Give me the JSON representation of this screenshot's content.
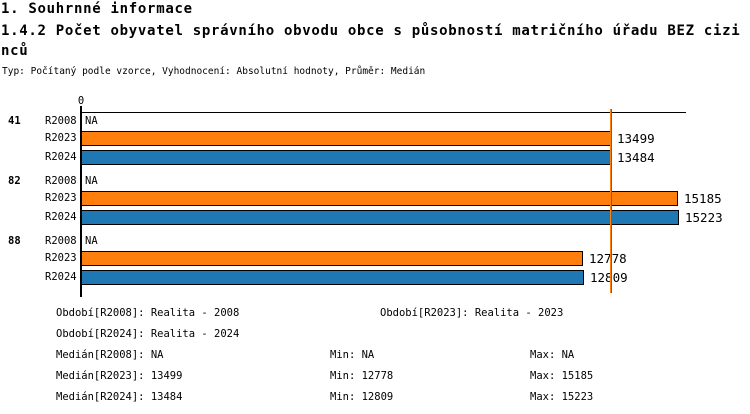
{
  "header": {
    "title": "1. Souhrnné informace",
    "subtitle": "1.4.2 Počet obyvatel správního obvodu obce s působností matričního úřadu BEZ cizinců",
    "type_line": "Typ: Počítaný podle vzorce, Vyhodnocení: Absolutní hodnoty, Průměr: Medián"
  },
  "chart_data": {
    "type": "bar",
    "orientation": "horizontal",
    "categories": [
      "41",
      "82",
      "88"
    ],
    "series": [
      {
        "name": "R2008",
        "color": null,
        "values": [
          null,
          null,
          null
        ]
      },
      {
        "name": "R2023",
        "color": "#FF7F0E",
        "values": [
          13499,
          15185,
          12778
        ]
      },
      {
        "name": "R2024",
        "color": "#1F77B4",
        "values": [
          13484,
          15223,
          12809
        ]
      }
    ],
    "na_label": "NA",
    "bar_value_labels": true,
    "x_axis": {
      "origin_label": "0",
      "xlim": [
        0,
        15400
      ],
      "grid": false
    },
    "median_lines": [
      {
        "series": "R2023",
        "value": 13499,
        "color": "#FF7F0E"
      },
      {
        "series": "R2024",
        "value": 13484,
        "color": "#1F77B4"
      }
    ],
    "legend_position": "bottom"
  },
  "footer": {
    "period_rows": [
      [
        "Období[R2008]: Realita - 2008",
        "Období[R2023]: Realita - 2023"
      ],
      [
        "Období[R2024]: Realita - 2024"
      ]
    ],
    "stat_rows": [
      [
        "Medián[R2008]: NA",
        "Min: NA",
        "Max: NA"
      ],
      [
        "Medián[R2023]: 13499",
        "Min: 12778",
        "Max: 15185"
      ],
      [
        "Medián[R2024]: 13484",
        "Min: 12809",
        "Max: 15223"
      ]
    ]
  },
  "colors": {
    "orange": "#FF7F0E",
    "blue": "#1F77B4",
    "axis": "#000000",
    "background": "#FFFFFF",
    "text": "#000000"
  }
}
